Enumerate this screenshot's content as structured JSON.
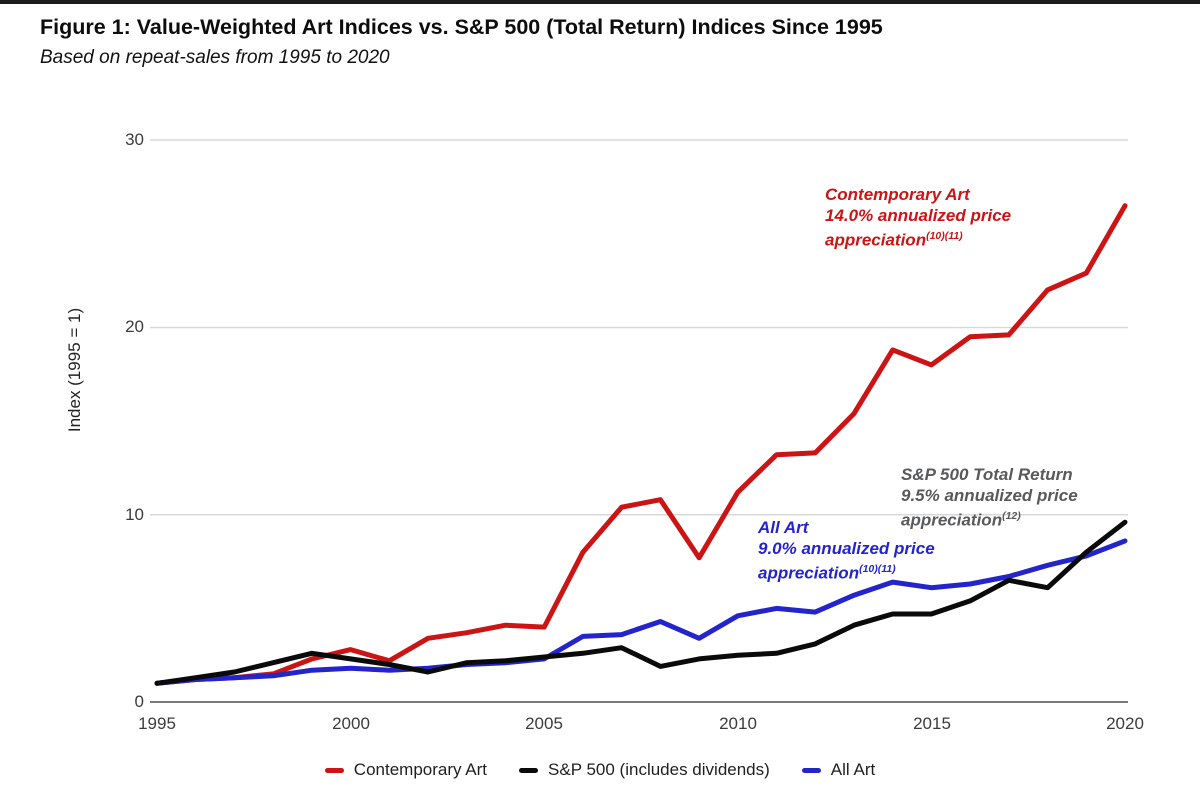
{
  "page": {
    "title": "Figure 1: Value-Weighted Art Indices vs. S&P 500 (Total Return) Indices Since 1995",
    "subtitle": "Based on repeat-sales from 1995 to 2020"
  },
  "chart_data": {
    "type": "line",
    "title": "Figure 1: Value-Weighted Art Indices vs. S&P 500 (Total Return) Indices Since 1995",
    "subtitle": "Based on repeat-sales from 1995 to 2020",
    "xlabel": "",
    "ylabel": "Index (1995 = 1)",
    "xlim": [
      1995,
      2020
    ],
    "ylim": [
      0,
      32
    ],
    "grid": true,
    "grid_color": "#d9d9d9",
    "axis_color": "#7a7a7a",
    "legend_position": "bottom",
    "x_tick_labels": [
      "1995",
      "2000",
      "2005",
      "2010",
      "2015",
      "2020"
    ],
    "y_tick_labels": [
      "30",
      "20",
      "10",
      "0"
    ],
    "x": [
      1995,
      1996,
      1997,
      1998,
      1999,
      2000,
      2001,
      2002,
      2003,
      2004,
      2005,
      2006,
      2007,
      2008,
      2009,
      2010,
      2011,
      2012,
      2013,
      2014,
      2015,
      2016,
      2017,
      2018,
      2019,
      2020
    ],
    "series": [
      {
        "name": "Contemporary Art",
        "color": "#cc1414",
        "values": [
          1.0,
          1.2,
          1.3,
          1.5,
          2.3,
          2.8,
          2.2,
          3.4,
          3.7,
          4.1,
          4.0,
          8.0,
          10.4,
          10.8,
          7.7,
          11.2,
          13.2,
          13.3,
          15.4,
          18.8,
          18.0,
          19.5,
          19.6,
          22.0,
          22.9,
          26.5
        ]
      },
      {
        "name": "S&P 500 (includes dividends)",
        "color": "#0a0a0a",
        "values": [
          1.0,
          1.3,
          1.6,
          2.1,
          2.6,
          2.3,
          2.0,
          1.6,
          2.1,
          2.2,
          2.4,
          2.6,
          2.9,
          1.9,
          2.3,
          2.5,
          2.6,
          3.1,
          4.1,
          4.7,
          4.7,
          5.4,
          6.5,
          6.1,
          8.0,
          9.6
        ]
      },
      {
        "name": "All Art",
        "color": "#2424cc",
        "values": [
          1.0,
          1.2,
          1.3,
          1.4,
          1.7,
          1.8,
          1.7,
          1.8,
          2.0,
          2.1,
          2.3,
          3.5,
          3.6,
          4.3,
          3.4,
          4.6,
          5.0,
          4.8,
          5.7,
          6.4,
          6.1,
          6.3,
          6.7,
          7.3,
          7.8,
          8.6
        ]
      }
    ],
    "annotations": [
      {
        "line1": "Contemporary Art",
        "line2": "14.0% annualized price",
        "line3": "appreciation",
        "sup": "(10)(11)",
        "color": "#cc1414"
      },
      {
        "line1": "S&P 500 Total Return",
        "line2": "9.5% annualized price",
        "line3": "appreciation",
        "sup": "(12)",
        "color": "#58595b"
      },
      {
        "line1": "All Art",
        "line2": "9.0% annualized price",
        "line3": "appreciation",
        "sup": "(10)(11)",
        "color": "#2424cc"
      }
    ]
  }
}
